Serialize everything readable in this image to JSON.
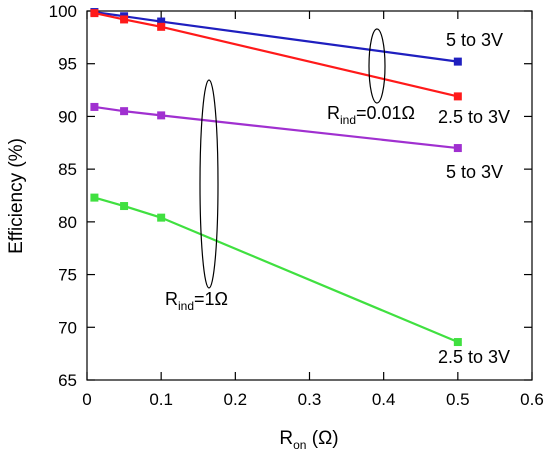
{
  "chart_data": {
    "type": "line",
    "xlabel": {
      "main": "R",
      "sub": "on",
      "suffix": " (Ω)"
    },
    "ylabel": "Efficiency  (%)",
    "xlim": [
      0,
      0.6
    ],
    "ylim": [
      65,
      100
    ],
    "xticks": [
      "0",
      "0.1",
      "0.2",
      "0.3",
      "0.4",
      "0.5",
      "0.6"
    ],
    "yticks": [
      "65",
      "70",
      "75",
      "80",
      "85",
      "90",
      "95",
      "100"
    ],
    "grid": false,
    "series": [
      {
        "color": "#1f1fbf",
        "x": [
          0.01,
          0.05,
          0.1,
          0.5
        ],
        "y": [
          99.9,
          99.5,
          99.0,
          95.2
        ]
      },
      {
        "color": "#ff1a1a",
        "x": [
          0.01,
          0.05,
          0.1,
          0.5
        ],
        "y": [
          99.8,
          99.2,
          98.5,
          91.9
        ]
      },
      {
        "color": "#a030d0",
        "x": [
          0.01,
          0.05,
          0.1,
          0.5
        ],
        "y": [
          90.9,
          90.5,
          90.1,
          87.0
        ]
      },
      {
        "color": "#40e040",
        "x": [
          0.01,
          0.05,
          0.1,
          0.5
        ],
        "y": [
          82.3,
          81.5,
          80.4,
          68.6
        ]
      }
    ],
    "annotations": {
      "blue_end": "5 to 3V",
      "red_end": "2.5 to 3V",
      "purple_end": "5 to 3V",
      "green_end": "2.5 to 3V",
      "rind_small": {
        "main": "R",
        "sub": "ind",
        "suffix": "=0.01Ω"
      },
      "rind_large": {
        "main": "R",
        "sub": "ind",
        "suffix": "=1Ω"
      }
    }
  }
}
